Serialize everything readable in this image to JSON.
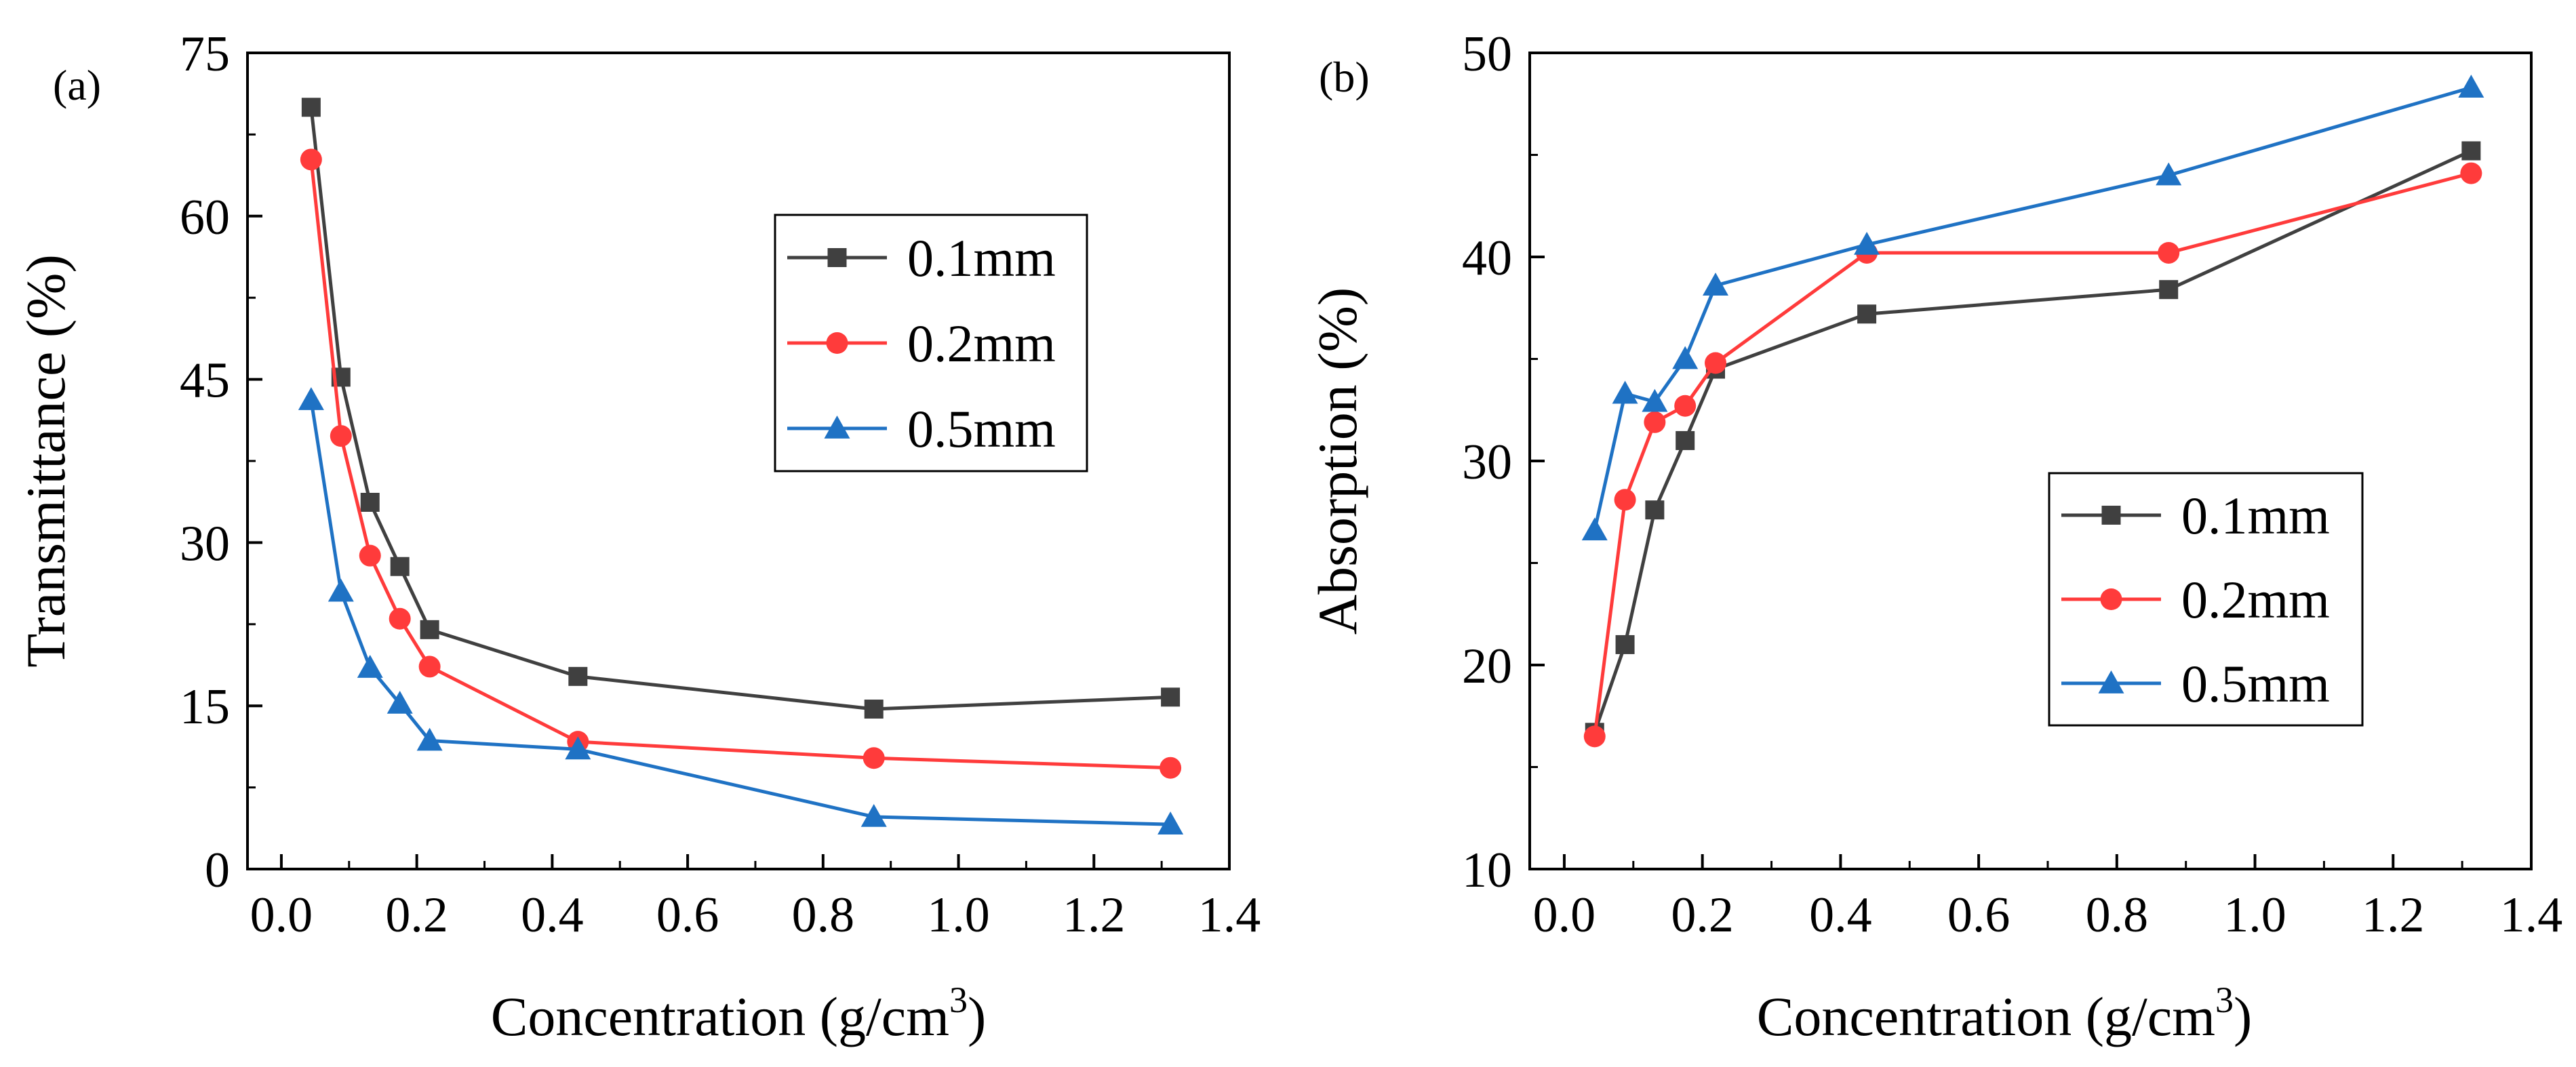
{
  "chart_data": [
    {
      "type": "line",
      "panel_label": "(a)",
      "xlabel_main": "Concentration (g/cm",
      "xlabel_sup": "3",
      "xlabel_close": ")",
      "ylabel": "Transmittance (%)",
      "xlim": [
        -0.05,
        1.4
      ],
      "ylim": [
        0,
        75
      ],
      "xticks": [
        0.0,
        0.2,
        0.4,
        0.6,
        0.8,
        1.0,
        1.2,
        1.4
      ],
      "xtick_labels": [
        "0.0",
        "0.2",
        "0.4",
        "0.6",
        "0.8",
        "1.0",
        "1.2",
        "1.4"
      ],
      "yticks": [
        0,
        15,
        30,
        45,
        60,
        75
      ],
      "ytick_labels": [
        "0",
        "15",
        "30",
        "45",
        "60",
        "75"
      ],
      "legend_position": "upper-right",
      "x": [
        0.044,
        0.088,
        0.131,
        0.175,
        0.219,
        0.438,
        0.875,
        1.313
      ],
      "series": [
        {
          "name": "0.1mm",
          "color": "#404040",
          "marker": "square",
          "values": [
            70.0,
            45.2,
            33.7,
            27.8,
            22.0,
            17.7,
            14.7,
            15.8
          ]
        },
        {
          "name": "0.2mm",
          "color": "#ff3b3b",
          "marker": "circle",
          "values": [
            65.2,
            39.8,
            28.8,
            23.0,
            18.6,
            11.7,
            10.2,
            9.3
          ]
        },
        {
          "name": "0.5mm",
          "color": "#1f72c4",
          "marker": "triangle",
          "values": [
            43.1,
            25.5,
            18.5,
            15.2,
            11.8,
            11.0,
            4.8,
            4.1
          ]
        }
      ]
    },
    {
      "type": "line",
      "panel_label": "(b)",
      "xlabel_main": "Concentration (g/cm",
      "xlabel_sup": "3",
      "xlabel_close": ")",
      "ylabel": "Absorption (%)",
      "xlim": [
        -0.05,
        1.4
      ],
      "ylim": [
        10,
        50
      ],
      "xticks": [
        0.0,
        0.2,
        0.4,
        0.6,
        0.8,
        1.0,
        1.2,
        1.4
      ],
      "xtick_labels": [
        "0.0",
        "0.2",
        "0.4",
        "0.6",
        "0.8",
        "1.0",
        "1.2",
        "1.4"
      ],
      "yticks": [
        10,
        20,
        30,
        40,
        50
      ],
      "ytick_labels": [
        "10",
        "20",
        "30",
        "40",
        "50"
      ],
      "legend_position": "lower-right",
      "x": [
        0.044,
        0.088,
        0.131,
        0.175,
        0.219,
        0.438,
        0.875,
        1.313
      ],
      "series": [
        {
          "name": "0.1mm",
          "color": "#404040",
          "marker": "square",
          "values": [
            16.7,
            21.0,
            27.6,
            31.0,
            34.5,
            37.2,
            38.4,
            45.2
          ]
        },
        {
          "name": "0.2mm",
          "color": "#ff3b3b",
          "marker": "circle",
          "values": [
            16.5,
            28.1,
            31.9,
            32.7,
            34.8,
            40.2,
            40.2,
            44.1
          ]
        },
        {
          "name": "0.5mm",
          "color": "#1f72c4",
          "marker": "triangle",
          "values": [
            26.6,
            33.3,
            32.9,
            35.0,
            38.6,
            40.6,
            44.0,
            48.3
          ]
        }
      ]
    }
  ]
}
